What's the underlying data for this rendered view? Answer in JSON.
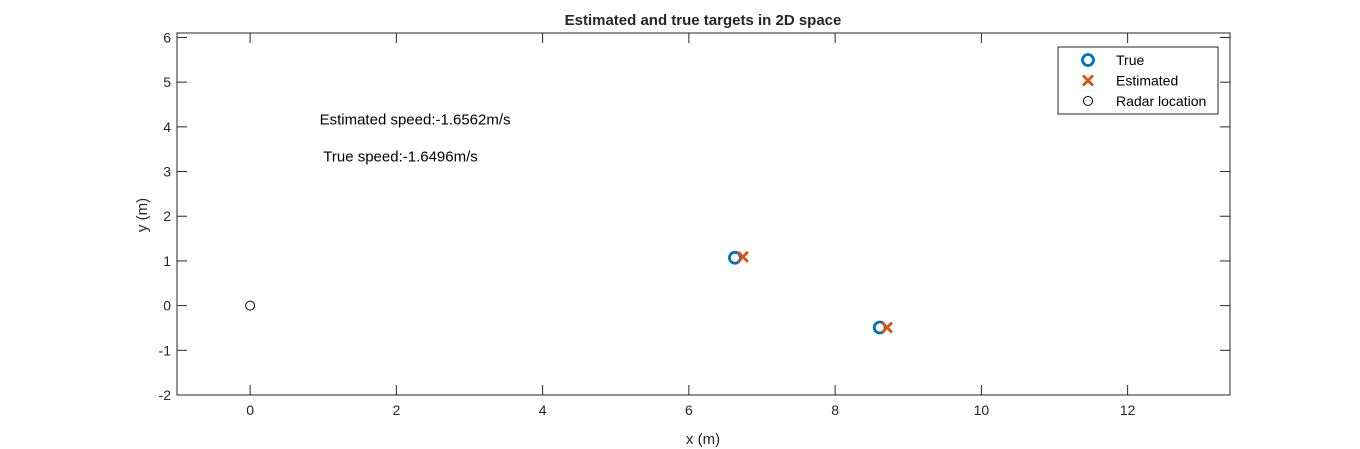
{
  "chart_data": {
    "type": "scatter",
    "title": "Estimated and true targets in 2D space",
    "xlabel": "x (m)",
    "ylabel": "y (m)",
    "xlim": [
      -1,
      13.4
    ],
    "ylim": [
      -2,
      6.1
    ],
    "xticks": [
      0,
      2,
      4,
      6,
      8,
      10,
      12
    ],
    "yticks": [
      -2,
      -1,
      0,
      1,
      2,
      3,
      4,
      5,
      6
    ],
    "grid": false,
    "legend_position": "top-right",
    "series": [
      {
        "name": "True",
        "marker": "circle",
        "color": "#0072BD",
        "points": [
          {
            "x": 6.63,
            "y": 1.07
          },
          {
            "x": 8.61,
            "y": -0.49
          }
        ]
      },
      {
        "name": "Estimated",
        "marker": "x",
        "color": "#D95319",
        "points": [
          {
            "x": 6.74,
            "y": 1.09
          },
          {
            "x": 8.71,
            "y": -0.49
          }
        ]
      },
      {
        "name": "Radar location",
        "marker": "small-circle",
        "color": "#000000",
        "points": [
          {
            "x": 0,
            "y": 0
          }
        ]
      }
    ],
    "annotations": [
      {
        "text": "Estimated speed:-1.6562m/s",
        "x": 0.95,
        "y": 4.05
      },
      {
        "text": "True speed:-1.6496m/s",
        "x": 1.0,
        "y": 3.22
      }
    ]
  }
}
